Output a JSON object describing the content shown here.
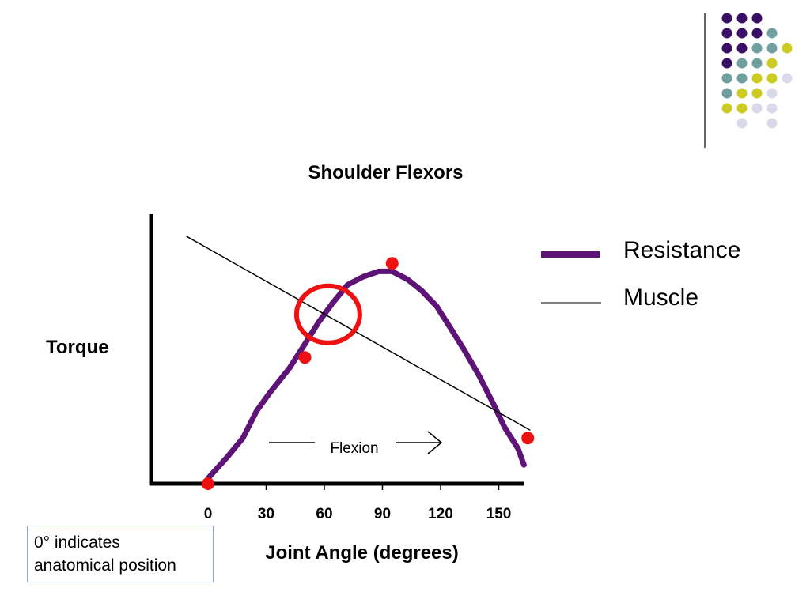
{
  "decoration": {
    "dot_colors": {
      "a": "#3a0f66",
      "b": "#6f9f9f",
      "c": "#cccc22",
      "d": "#d9d9ea"
    },
    "dot_grid": [
      [
        "a",
        "a",
        "a",
        "",
        ""
      ],
      [
        "a",
        "a",
        "a",
        "b",
        ""
      ],
      [
        "a",
        "a",
        "b",
        "b",
        "c"
      ],
      [
        "a",
        "b",
        "b",
        "c",
        ""
      ],
      [
        "b",
        "b",
        "c",
        "c",
        "d"
      ],
      [
        "b",
        "c",
        "c",
        "d",
        ""
      ],
      [
        "c",
        "c",
        "d",
        "d",
        ""
      ],
      [
        "",
        "d",
        "",
        "d",
        ""
      ]
    ]
  },
  "chart_data": {
    "type": "line",
    "title": "Shoulder Flexors",
    "xlabel": "Joint Angle (degrees)",
    "ylabel": "Torque",
    "xlim": [
      -30,
      170
    ],
    "ylim": [
      0,
      100
    ],
    "x_ticks": [
      0,
      30,
      60,
      90,
      120,
      150
    ],
    "grid": false,
    "legend_position": "right",
    "series": [
      {
        "name": "Resistance",
        "color": "#5e1477",
        "style": "thick",
        "points": [
          [
            0,
            2
          ],
          [
            10,
            10
          ],
          [
            18,
            17
          ],
          [
            25,
            27
          ],
          [
            32,
            34
          ],
          [
            42,
            43
          ],
          [
            50,
            52
          ],
          [
            57,
            60
          ],
          [
            64,
            67
          ],
          [
            72,
            74
          ],
          [
            80,
            77
          ],
          [
            88,
            79
          ],
          [
            95,
            79
          ],
          [
            103,
            76
          ],
          [
            110,
            72
          ],
          [
            118,
            66
          ],
          [
            125,
            58
          ],
          [
            132,
            50
          ],
          [
            140,
            40
          ],
          [
            147,
            30
          ],
          [
            153,
            21
          ],
          [
            160,
            13
          ],
          [
            163,
            7
          ]
        ]
      },
      {
        "name": "Muscle",
        "color": "#000000",
        "style": "thin",
        "points": [
          [
            -11,
            92
          ],
          [
            166,
            20
          ]
        ]
      }
    ],
    "markers": [
      {
        "x": 0,
        "y": 0,
        "color": "#ee1111"
      },
      {
        "x": 50,
        "y": 47,
        "color": "#ee1111"
      },
      {
        "x": 95,
        "y": 82,
        "color": "#ee1111"
      },
      {
        "x": 165,
        "y": 17,
        "color": "#ee1111"
      }
    ],
    "highlight_circle": {
      "x": 62,
      "y": 63,
      "color": "#ee1111"
    },
    "annotations": [
      {
        "text": "Flexion",
        "arrow": "right"
      }
    ],
    "note_lines": [
      "0° indicates",
      "anatomical position"
    ]
  }
}
